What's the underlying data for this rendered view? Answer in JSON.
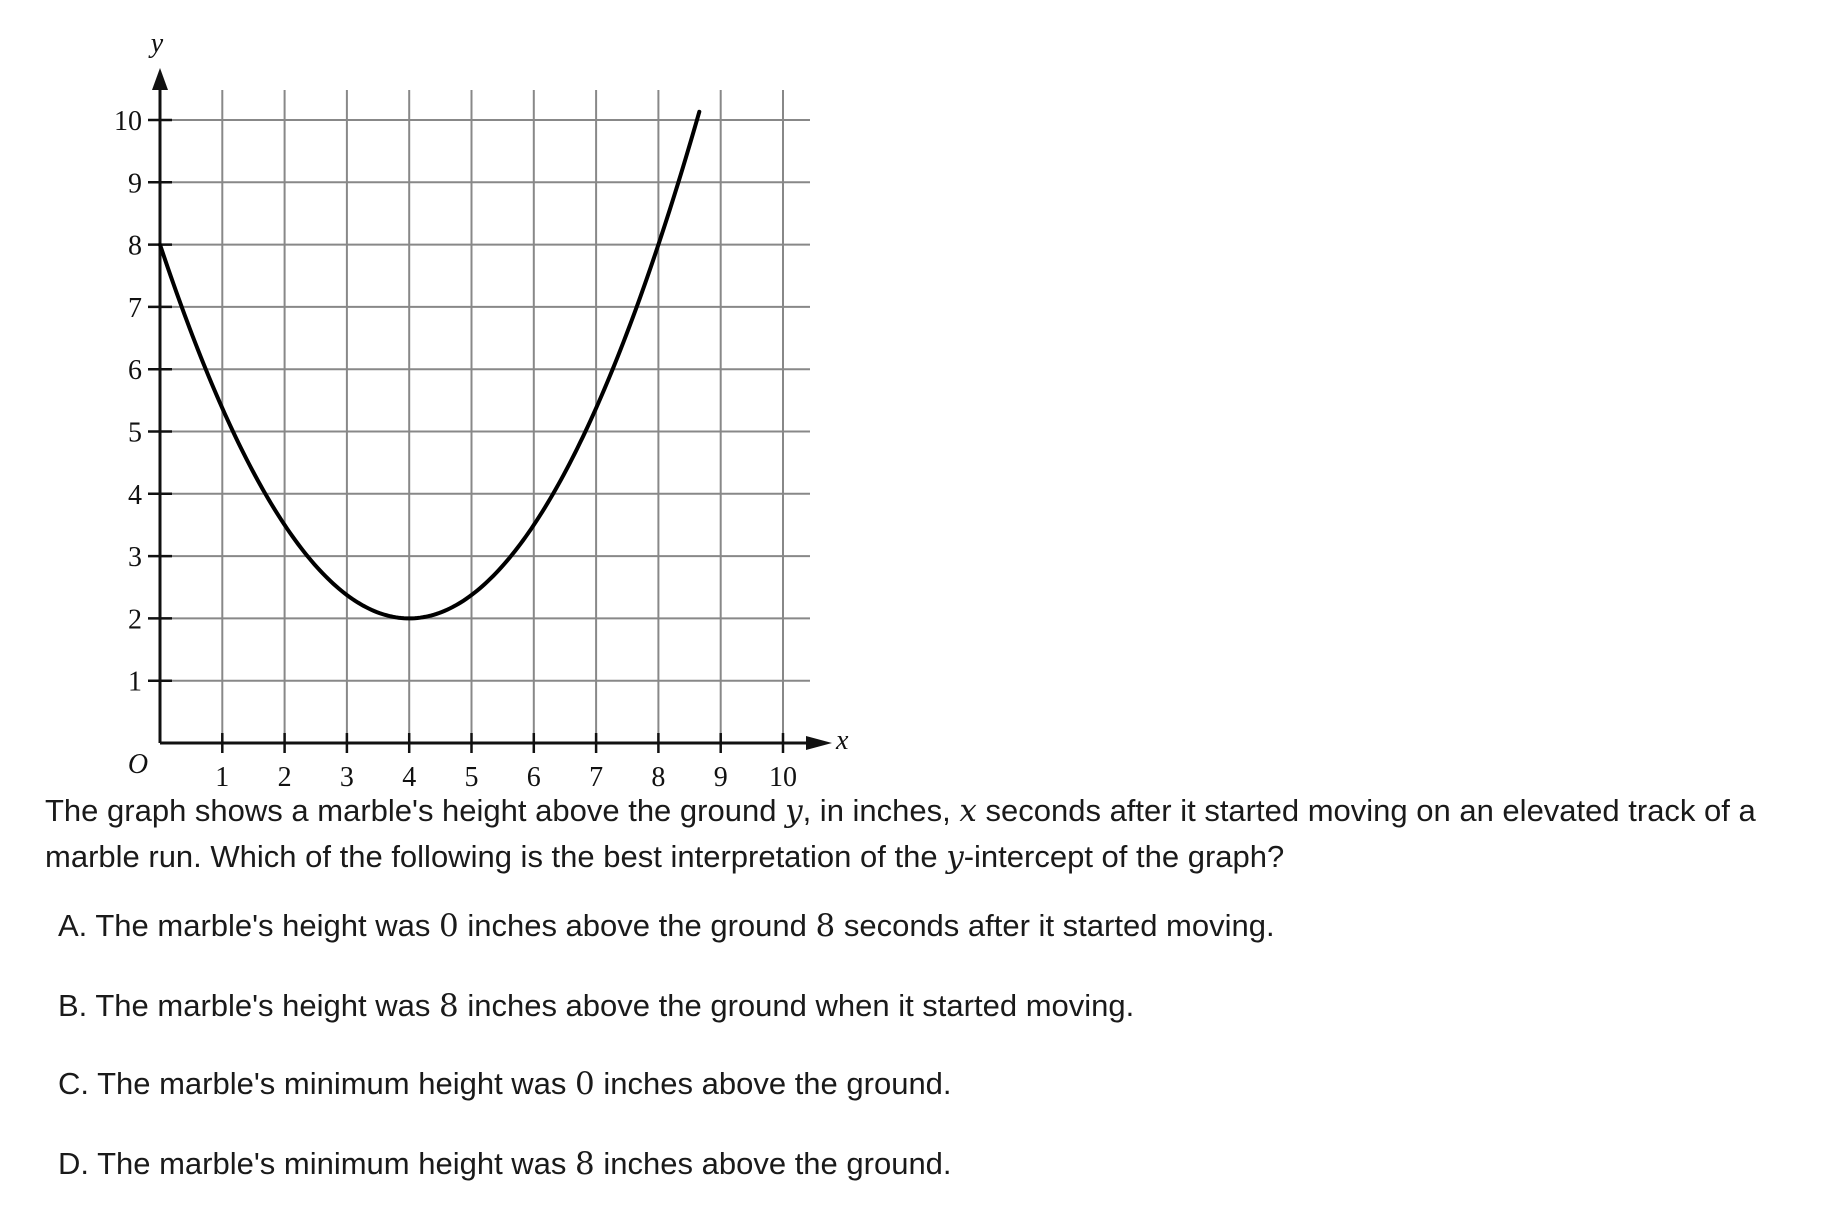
{
  "chart_data": {
    "type": "line",
    "x_label": "x",
    "y_label": "y",
    "origin_label": "O",
    "xlim": [
      0,
      10
    ],
    "ylim": [
      0,
      10
    ],
    "x_ticks": [
      1,
      2,
      3,
      4,
      5,
      6,
      7,
      8,
      9,
      10
    ],
    "y_ticks": [
      1,
      2,
      3,
      4,
      5,
      6,
      7,
      8,
      9,
      10
    ],
    "grid": true,
    "series": [
      {
        "function": "y = 0.375 * (x - 4)^2 + 2",
        "x": [
          0,
          1,
          2,
          3,
          4,
          5,
          6,
          7,
          8,
          8.7
        ],
        "y": [
          8,
          5.375,
          3.5,
          2.375,
          2,
          2.375,
          3.5,
          5.375,
          8,
          10.28
        ]
      }
    ]
  },
  "question": {
    "part1": "The graph shows a marble's height above the ground ",
    "var_y1": "y",
    "part2": ", in inches, ",
    "var_x": "x",
    "part3": " seconds after it started moving on an elevated track of a marble run. Which of the following is the best interpretation of the ",
    "var_y2": "y",
    "part4": "-intercept of the graph?"
  },
  "choices": [
    {
      "letter": "A. ",
      "pre": "The marble's height was ",
      "n1": "0",
      "mid": " inches above the ground ",
      "n2": "8",
      "post": " seconds after it started moving."
    },
    {
      "letter": "B. ",
      "pre": "The marble's height was ",
      "n1": "8",
      "post": " inches above the ground when it started moving."
    },
    {
      "letter": "C. ",
      "pre": "The marble's minimum height was ",
      "n1": "0",
      "post": " inches above the ground."
    },
    {
      "letter": "D. ",
      "pre": "The marble's minimum height was ",
      "n1": "8",
      "post": " inches above the ground."
    }
  ]
}
